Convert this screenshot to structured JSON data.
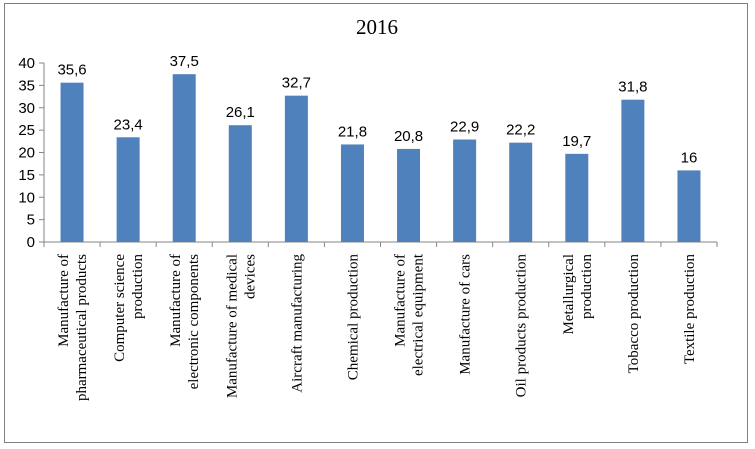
{
  "chart_data": {
    "type": "bar",
    "title": "2016",
    "xlabel": "",
    "ylabel": "",
    "ylim": [
      0,
      40
    ],
    "yticks": [
      "0",
      "5",
      "10",
      "15",
      "20",
      "25",
      "30",
      "35",
      "40"
    ],
    "grid": false,
    "legend": "none",
    "bar_color": "#4f81bd",
    "categories": [
      [
        "Manufacture of",
        "pharmaceutical products"
      ],
      [
        "Computer science",
        "production"
      ],
      [
        "Manufacture of",
        "electronic components"
      ],
      [
        "Manufacture of medical",
        "devices"
      ],
      [
        "Aircraft manufacturing"
      ],
      [
        "Chemical production"
      ],
      [
        "Manufacture of",
        "electrical equipment"
      ],
      [
        "Manufacture of cars"
      ],
      [
        "Oil products production"
      ],
      [
        "Metallurgical",
        "production"
      ],
      [
        "Tobacco production"
      ],
      [
        "Textile production"
      ]
    ],
    "values": [
      35.6,
      23.4,
      37.5,
      26.1,
      32.7,
      21.8,
      20.8,
      22.9,
      22.2,
      19.7,
      31.8,
      16
    ],
    "data_labels": [
      "35,6",
      "23,4",
      "37,5",
      "26,1",
      "32,7",
      "21,8",
      "20,8",
      "22,9",
      "22,2",
      "19,7",
      "31,8",
      "16"
    ]
  }
}
